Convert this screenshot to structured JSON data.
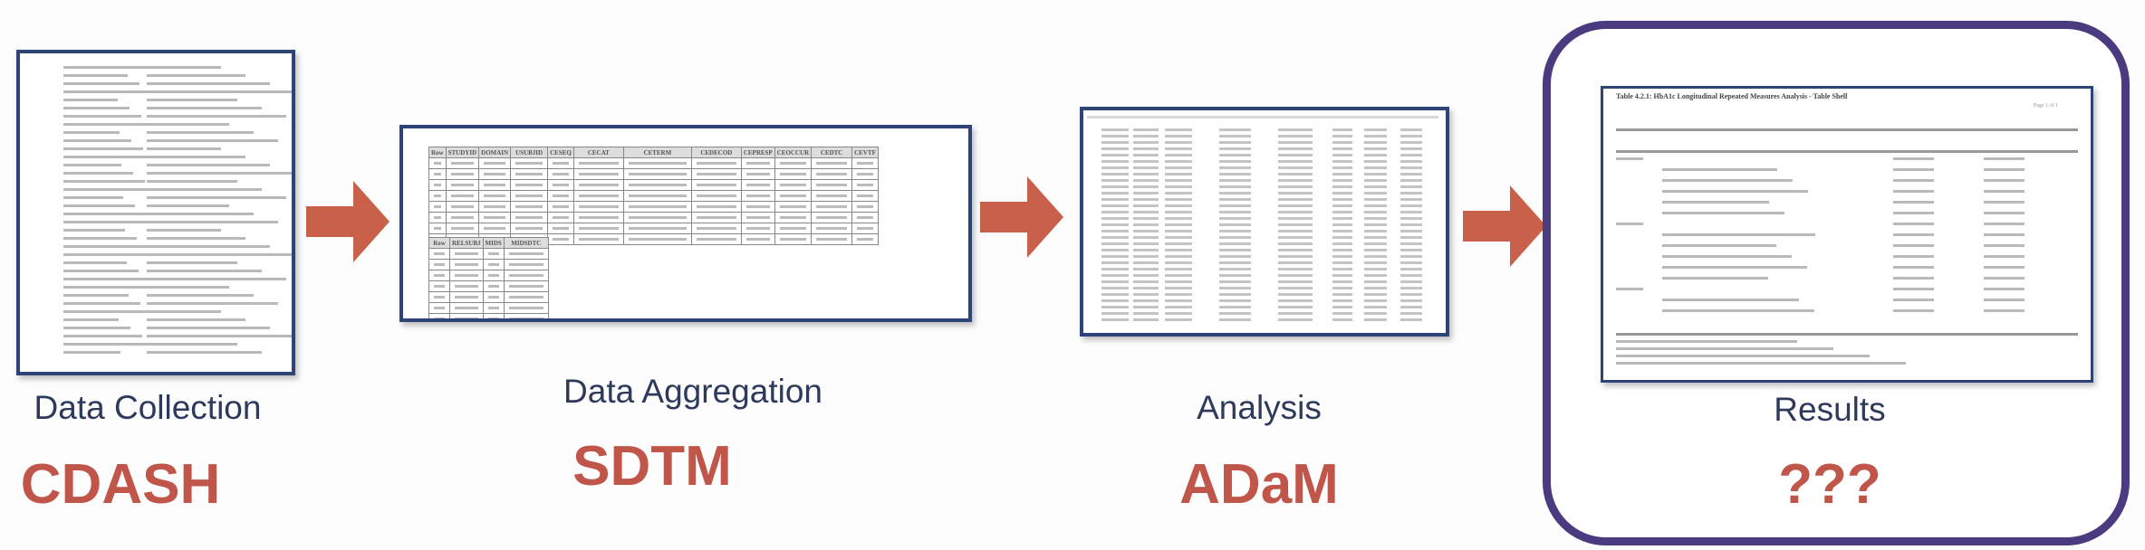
{
  "stages": [
    {
      "label": "Data Collection",
      "standard": "CDASH"
    },
    {
      "label": "Data Aggregation",
      "standard": "SDTM"
    },
    {
      "label": "Analysis",
      "standard": "ADaM"
    },
    {
      "label": "Results",
      "standard": "???"
    }
  ],
  "sdtm_table": {
    "headers": [
      "Row",
      "STUDYID",
      "DOMAIN",
      "USUBJID",
      "CESEQ",
      "CECAT",
      "CETERM",
      "CEDECOD",
      "CEPRESP",
      "CEOCCUR",
      "CEDTC",
      "CEVTF"
    ]
  },
  "sdtm_supp_table": {
    "headers": [
      "Row",
      "RELSUBJ",
      "MIDS",
      "MIDSDTC"
    ]
  },
  "results_doc": {
    "title": "Table 4.2.1: HbA1c Longitudinal Repeated Measures Analysis - Table Shell",
    "page": "Page 1 of 1"
  },
  "colors": {
    "label": "#2e3a5c",
    "standard": "#c0564a",
    "arrow": "#c9604a",
    "frame": "#2e4478",
    "results_border": "#4a3a80"
  }
}
